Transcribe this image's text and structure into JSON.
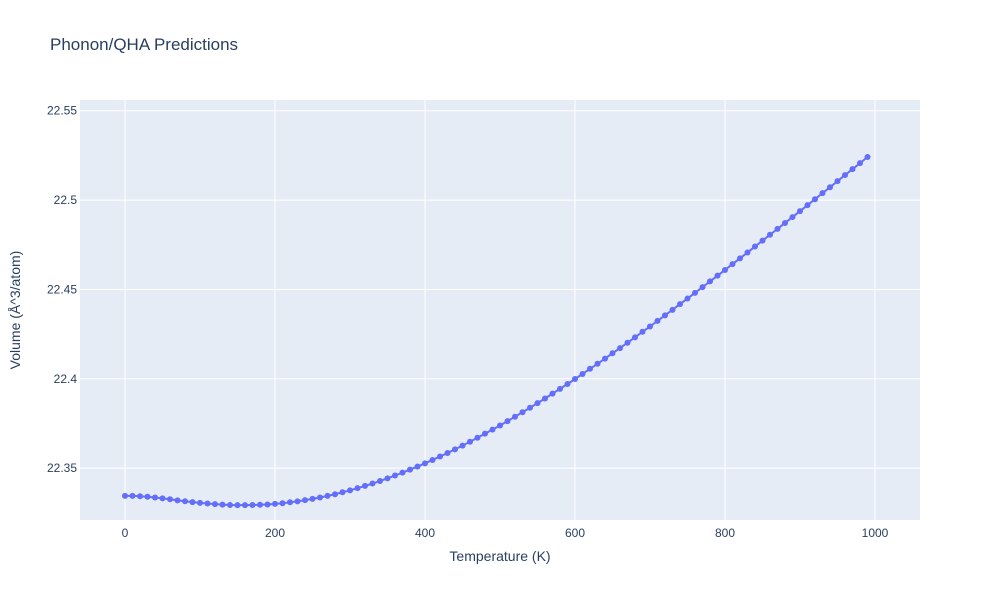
{
  "chart_data": {
    "type": "scatter",
    "mode": "lines+markers",
    "title": "Phonon/QHA Predictions",
    "xlabel": "Temperature (K)",
    "ylabel": "Volume (Å^3/atom)",
    "xlim": [
      -60,
      1060
    ],
    "ylim": [
      22.321,
      22.556
    ],
    "xticks": [
      0,
      200,
      400,
      600,
      800,
      1000
    ],
    "xtick_labels": [
      "0",
      "200",
      "400",
      "600",
      "800",
      "1000"
    ],
    "yticks": [
      22.35,
      22.4,
      22.45,
      22.5,
      22.55
    ],
    "ytick_labels": [
      "22.35",
      "22.4",
      "22.45",
      "22.5",
      "22.55"
    ],
    "grid": true,
    "colors": {
      "plot_bg": "#e5ecf6",
      "grid": "#ffffff",
      "series": "#636efa",
      "text": "#2a3f5f"
    },
    "series": [
      {
        "x": [
          0,
          10,
          20,
          30,
          40,
          50,
          60,
          70,
          80,
          90,
          100,
          110,
          120,
          130,
          140,
          150,
          160,
          170,
          180,
          190,
          200,
          210,
          220,
          230,
          240,
          250,
          260,
          270,
          280,
          290,
          300,
          310,
          320,
          330,
          340,
          350,
          360,
          370,
          380,
          390,
          400,
          410,
          420,
          430,
          440,
          450,
          460,
          470,
          480,
          490,
          500,
          510,
          520,
          530,
          540,
          550,
          560,
          570,
          580,
          590,
          600,
          610,
          620,
          630,
          640,
          650,
          660,
          670,
          680,
          690,
          700,
          710,
          720,
          730,
          740,
          750,
          760,
          770,
          780,
          790,
          800,
          810,
          820,
          830,
          840,
          850,
          860,
          870,
          880,
          890,
          900,
          910,
          920,
          930,
          940,
          950,
          960,
          970,
          980,
          990
        ],
        "y": [
          22.3345,
          22.3345,
          22.3343,
          22.334,
          22.3336,
          22.3331,
          22.3326,
          22.332,
          22.3315,
          22.331,
          22.3306,
          22.3302,
          22.3299,
          22.3296,
          22.3294,
          22.3293,
          22.3293,
          22.3294,
          22.3295,
          22.3297,
          22.33,
          22.3304,
          22.3309,
          22.3314,
          22.3321,
          22.3328,
          22.3336,
          22.3345,
          22.3354,
          22.3365,
          22.3376,
          22.3388,
          22.3401,
          22.3414,
          22.3428,
          22.3443,
          22.3459,
          22.3475,
          22.3492,
          22.3509,
          22.3527,
          22.3546,
          22.3565,
          22.3585,
          22.3605,
          22.3626,
          22.3648,
          22.367,
          22.3693,
          22.3716,
          22.3739,
          22.3763,
          22.3788,
          22.3813,
          22.3838,
          22.3864,
          22.389,
          22.3917,
          22.3944,
          22.3971,
          22.3999,
          22.4027,
          22.4056,
          22.4084,
          22.4113,
          22.4143,
          22.4172,
          22.4202,
          22.4232,
          22.4263,
          22.4293,
          22.4324,
          22.4355,
          22.4386,
          22.4418,
          22.4449,
          22.4481,
          22.4513,
          22.4545,
          22.4577,
          22.4609,
          22.4642,
          22.4674,
          22.4707,
          22.474,
          22.4773,
          22.4806,
          22.4839,
          22.4872,
          22.4905,
          22.4938,
          22.4972,
          22.5005,
          22.5039,
          22.5072,
          22.5106,
          22.514,
          22.5173,
          22.5207,
          22.5241
        ]
      }
    ]
  }
}
